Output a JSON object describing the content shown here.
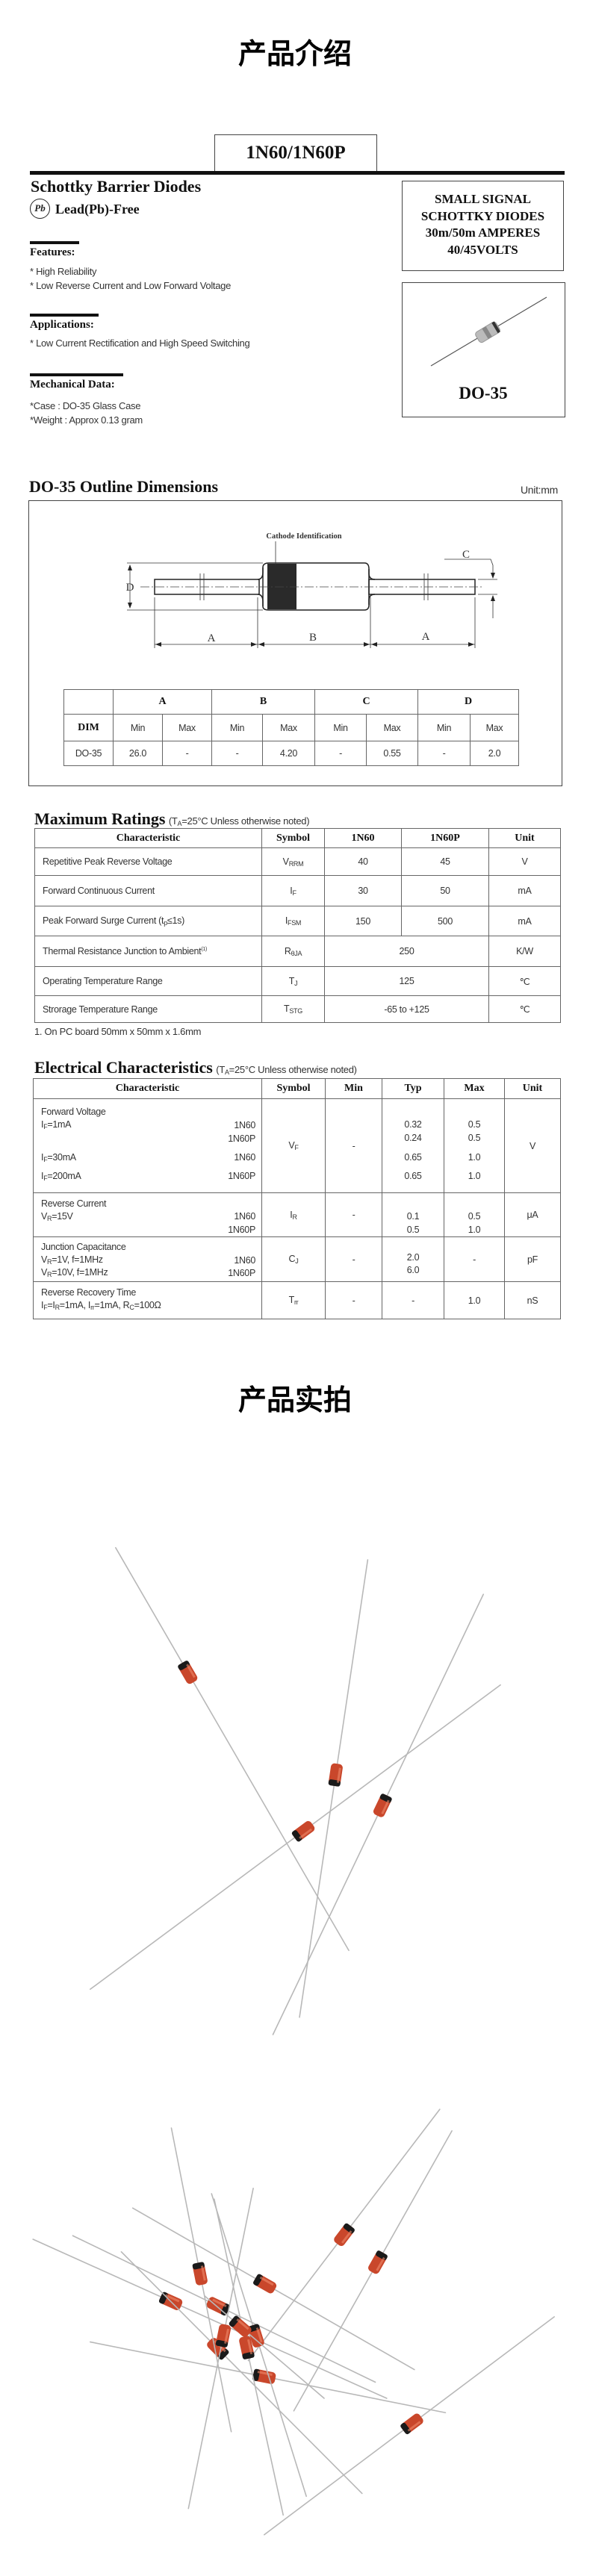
{
  "intro_title": "产品介绍",
  "product_title": "1N60/1N60P",
  "subtitle": "Schottky Barrier Diodes",
  "pb_icon_label": "Pb",
  "lead_free": "Lead(Pb)-Free",
  "summary_box": [
    "SMALL SIGNAL",
    "SCHOTTKY DIODES",
    "30m/50m AMPERES",
    "40/45VOLTS"
  ],
  "package_box": {
    "label": "DO-35",
    "icon": "axial-diode-icon"
  },
  "features": {
    "heading": "Features:",
    "items": [
      "* High Reliability",
      "* Low Reverse Current and Low Forward Voltage"
    ]
  },
  "applications": {
    "heading": "Applications:",
    "items": [
      "* Low Current Rectification and High Speed Switching"
    ]
  },
  "mechanical": {
    "heading": "Mechanical Data:",
    "items": [
      "*Case : DO-35 Glass Case",
      "*Weight : Approx 0.13 gram"
    ]
  },
  "outline": {
    "heading": "DO-35 Outline Dimensions",
    "unit": "Unit:mm",
    "cathode_label": "Cathode Identification",
    "dim_labels": {
      "a": "A",
      "b": "B",
      "c": "C",
      "d": "D"
    },
    "table": {
      "groups": [
        "A",
        "B",
        "C",
        "D"
      ],
      "dim_label": "DIM",
      "subheaders": [
        "Min",
        "Max",
        "Min",
        "Max",
        "Min",
        "Max",
        "Min",
        "Max"
      ],
      "row_label": "DO-35",
      "values": [
        "26.0",
        "-",
        "-",
        "4.20",
        "-",
        "0.55",
        "-",
        "2.0"
      ]
    }
  },
  "max_ratings": {
    "heading": "Maximum Ratings",
    "condition": [
      {
        "t": "(T"
      },
      {
        "s": "A"
      },
      {
        "t": "=25°C Unless otherwise noted)"
      }
    ],
    "headers": [
      "Characteristic",
      "Symbol",
      "1N60",
      "1N60P",
      "Unit"
    ],
    "rows": [
      {
        "char": [
          {
            "t": "Repetitive Peak Reverse Voltage"
          }
        ],
        "sym": [
          {
            "t": "V"
          },
          {
            "s": "RRM"
          }
        ],
        "v1": "40",
        "v2": "45",
        "unit": "V"
      },
      {
        "char": [
          {
            "t": "Forward Continuous Current"
          }
        ],
        "sym": [
          {
            "t": "I"
          },
          {
            "s": "F"
          }
        ],
        "v1": "30",
        "v2": "50",
        "unit": "mA"
      },
      {
        "char": [
          {
            "t": "Peak Forward Surge Current (t"
          },
          {
            "s": "p"
          },
          {
            "t": "≤1s)"
          }
        ],
        "sym": [
          {
            "t": "I"
          },
          {
            "s": "FSM"
          }
        ],
        "v1": "150",
        "v2": "500",
        "unit": "mA"
      },
      {
        "char": [
          {
            "t": "Thermal Resistance Junction to Ambient"
          },
          {
            "p": "(1)"
          }
        ],
        "sym": [
          {
            "t": "R"
          },
          {
            "s": "θJA"
          }
        ],
        "v": "250",
        "unit": "K/W"
      },
      {
        "char": [
          {
            "t": "Operating Temperature Range"
          }
        ],
        "sym": [
          {
            "t": "T"
          },
          {
            "s": "J"
          }
        ],
        "v": "125",
        "unit": "℃"
      },
      {
        "char": [
          {
            "t": "Strorage Temperature Range"
          }
        ],
        "sym": [
          {
            "t": "T"
          },
          {
            "s": "STG"
          }
        ],
        "v": "-65 to +125",
        "unit": "℃"
      }
    ],
    "footnote": "1. On PC board 50mm x 50mm x 1.6mm"
  },
  "electrical": {
    "heading": "Electrical Characteristics",
    "condition": [
      {
        "t": "(T"
      },
      {
        "s": "A"
      },
      {
        "t": "=25°C Unless otherwise noted)"
      }
    ],
    "headers": [
      "Characteristic",
      "Symbol",
      "Min",
      "Typ",
      "Max",
      "Unit"
    ],
    "forward_voltage": {
      "title": "Forward Voltage",
      "lines": [
        {
          "cond": [
            {
              "t": "I"
            },
            {
              "s": "F"
            },
            {
              "t": "=1mA"
            }
          ],
          "part": "1N60",
          "typ": "0.32",
          "max": "0.5"
        },
        {
          "cond": [],
          "part": "1N60P",
          "typ": "0.24",
          "max": "0.5"
        },
        {
          "cond": [
            {
              "t": "I"
            },
            {
              "s": "F"
            },
            {
              "t": "=30mA"
            }
          ],
          "part": "1N60",
          "typ": "0.65",
          "max": "1.0"
        },
        {
          "cond": [
            {
              "t": "I"
            },
            {
              "s": "F"
            },
            {
              "t": "=200mA"
            }
          ],
          "part": "1N60P",
          "typ": "0.65",
          "max": "1.0"
        }
      ],
      "sym": [
        {
          "t": "V"
        },
        {
          "s": "F"
        }
      ],
      "min": "-",
      "unit": "V"
    },
    "reverse_current": {
      "title": "Reverse Current",
      "lines": [
        {
          "cond": [
            {
              "t": "V"
            },
            {
              "s": "R"
            },
            {
              "t": "=15V"
            }
          ],
          "part": "1N60",
          "typ": "0.1",
          "max": "0.5"
        },
        {
          "cond": [],
          "part": "1N60P",
          "typ": "0.5",
          "max": "1.0"
        }
      ],
      "sym": [
        {
          "t": "I"
        },
        {
          "s": "R"
        }
      ],
      "min": "-",
      "unit": "μA"
    },
    "junction_capacitance": {
      "title": "Junction Capacitance",
      "lines": [
        {
          "cond": [
            {
              "t": "V"
            },
            {
              "s": "R"
            },
            {
              "t": "=1V, f=1MHz"
            }
          ],
          "part": "1N60",
          "typ": "2.0"
        },
        {
          "cond": [
            {
              "t": "V"
            },
            {
              "s": "R"
            },
            {
              "t": "=10V, f=1MHz"
            }
          ],
          "part": "1N60P",
          "typ": "6.0"
        }
      ],
      "sym": [
        {
          "t": "C"
        },
        {
          "s": "J"
        }
      ],
      "min": "-",
      "max": "-",
      "unit": "pF"
    },
    "recovery_time": {
      "title": "Reverse Recovery Time",
      "cond": [
        {
          "t": "I"
        },
        {
          "s": "F"
        },
        {
          "t": "=I"
        },
        {
          "s": "R"
        },
        {
          "t": "=1mA, I"
        },
        {
          "s": "rr"
        },
        {
          "t": "=1mA, R"
        },
        {
          "s": "C"
        },
        {
          "t": "=100Ω"
        }
      ],
      "sym": [
        {
          "t": "T"
        },
        {
          "s": "rr"
        }
      ],
      "min": "-",
      "typ": "-",
      "max": "1.0",
      "unit": "nS"
    }
  },
  "photos_title": "产品实拍",
  "colors": {
    "diode_body": "#c9472b",
    "cathode_band": "#1a1a1a",
    "lead": "#b8b8b8",
    "text": "#222222"
  }
}
